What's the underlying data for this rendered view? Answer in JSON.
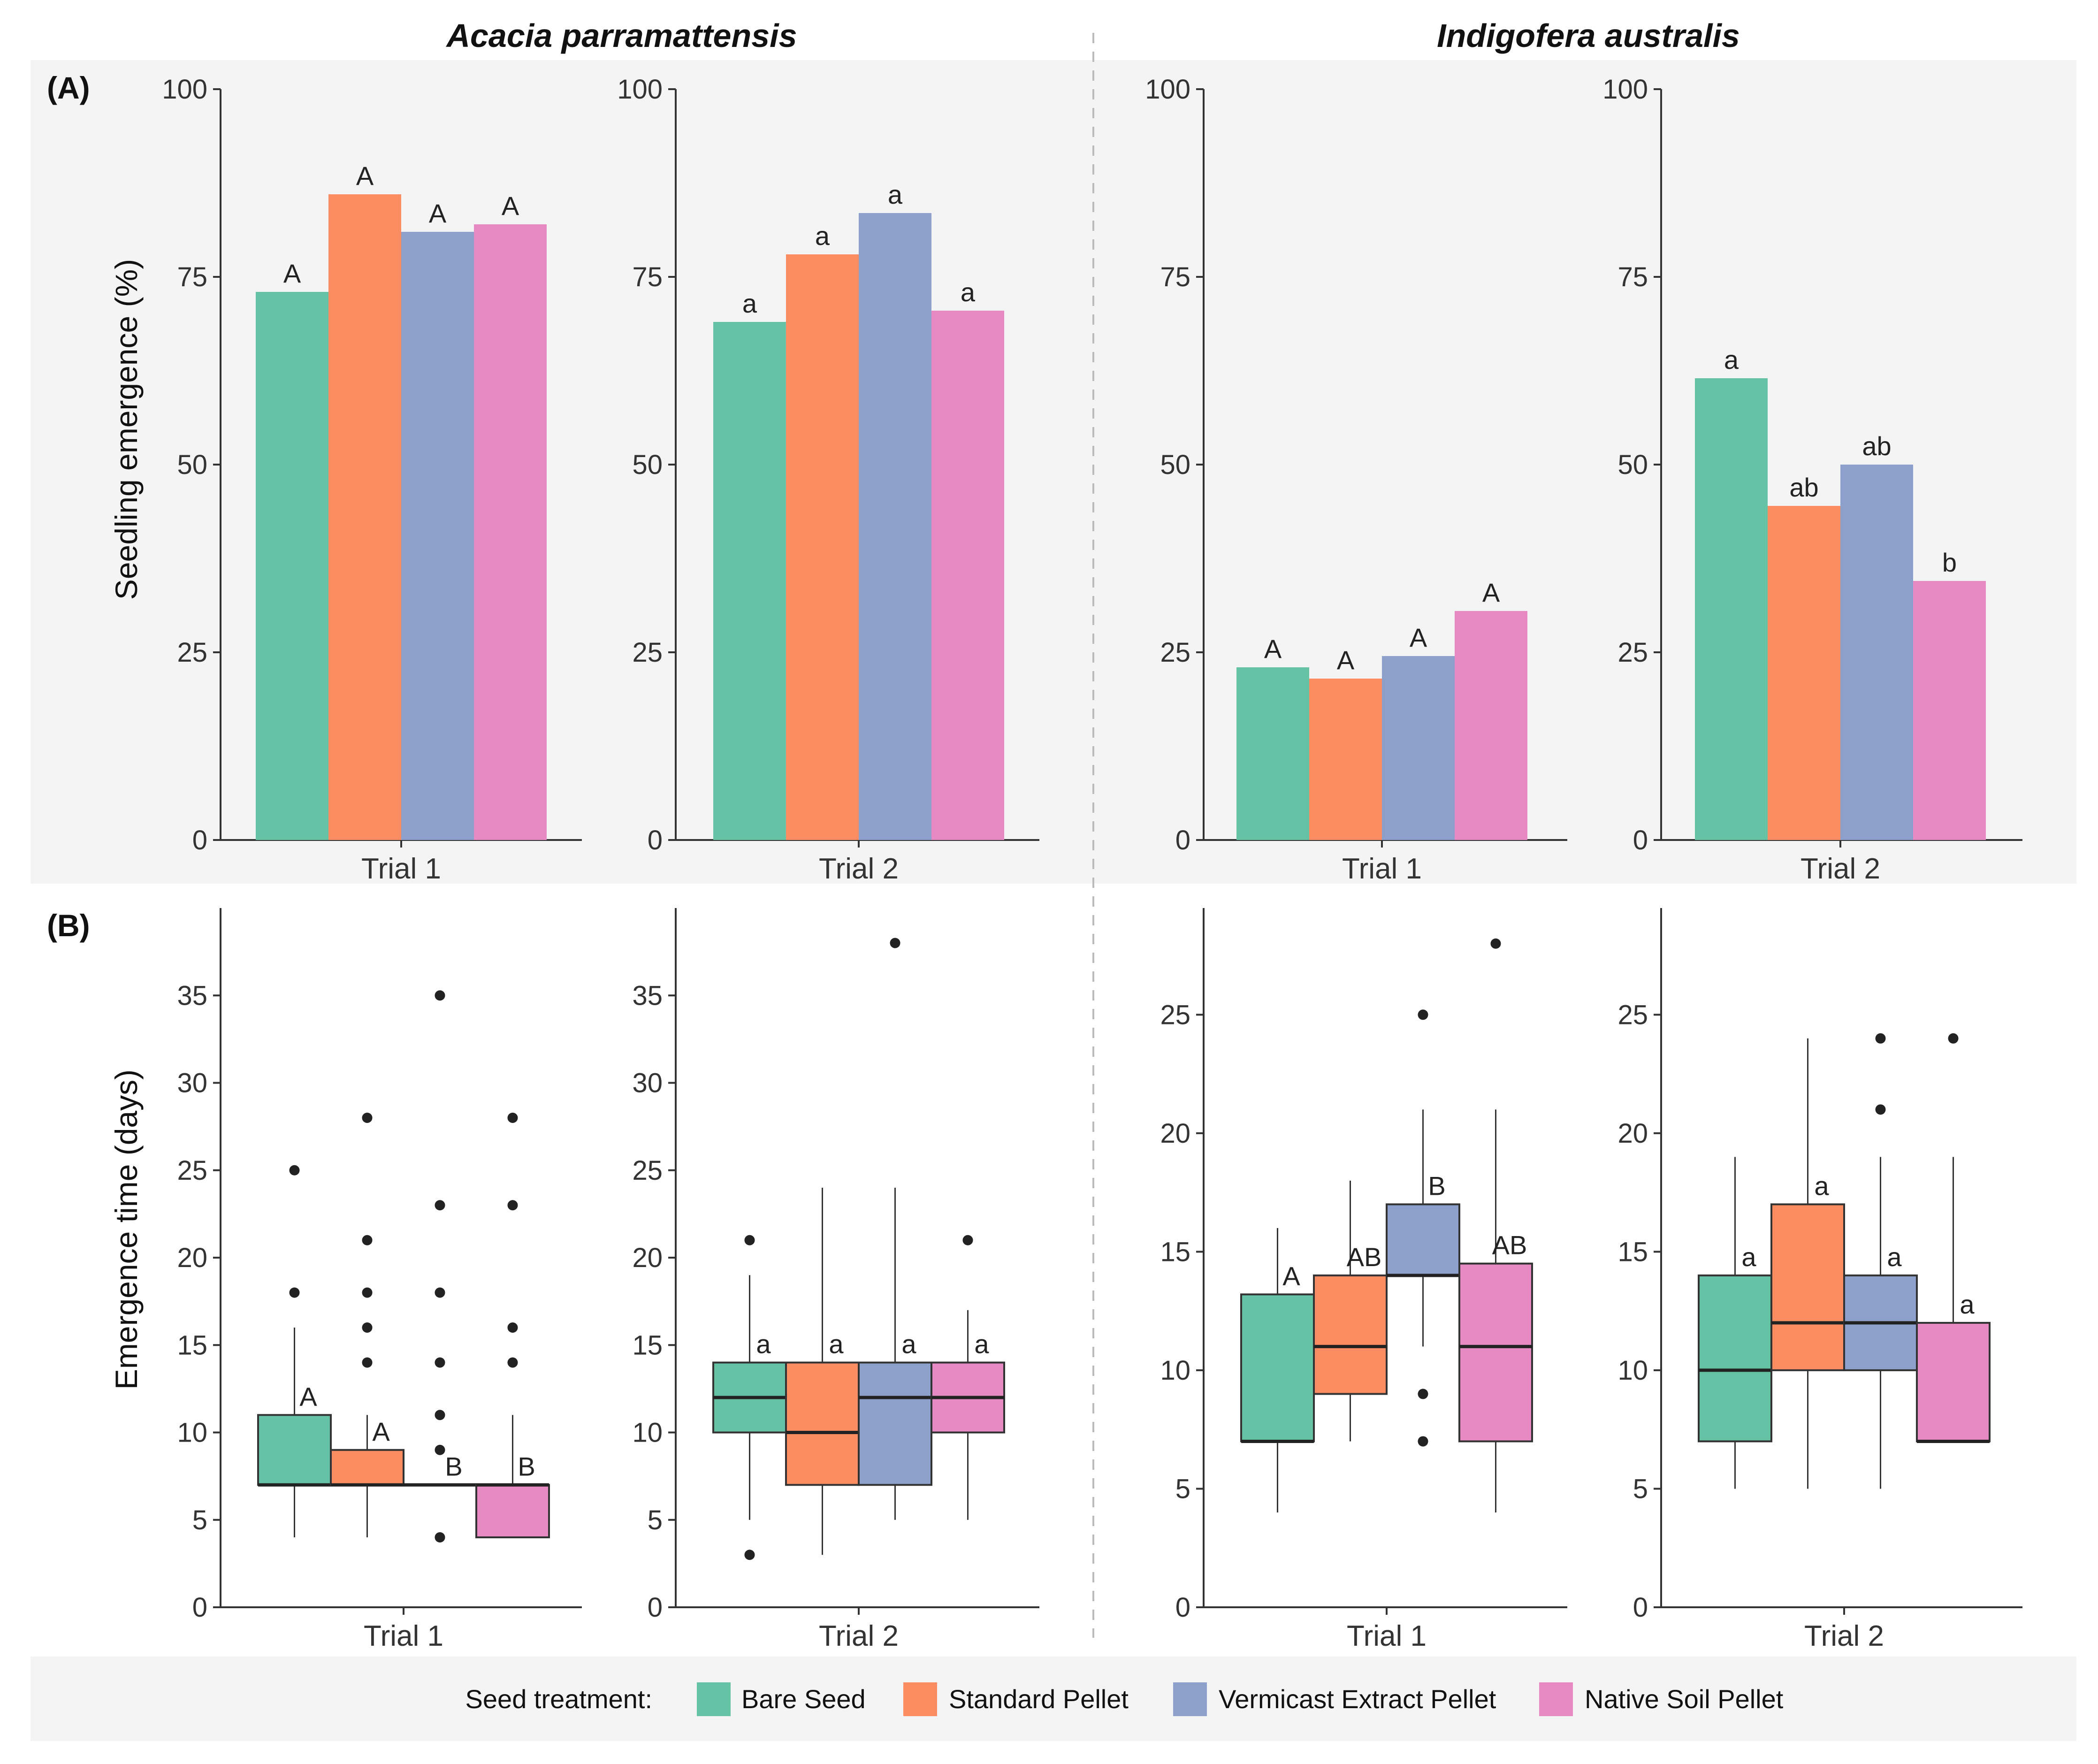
{
  "figure": {
    "species": [
      "Acacia parramattensis",
      "Indigofera australis"
    ],
    "panel_labels": [
      "(A)",
      "(B)"
    ],
    "legend": {
      "title": "Seed treatment:",
      "items": [
        {
          "label": "Bare Seed",
          "color": "#66c2a5"
        },
        {
          "label": "Standard Pellet",
          "color": "#fc8d62"
        },
        {
          "label": "Vermicast Extract Pellet",
          "color": "#8da0cb"
        },
        {
          "label": "Native Soil Pellet",
          "color": "#e78ac3"
        }
      ]
    }
  },
  "chart_data": [
    {
      "type": "bar",
      "row": "A",
      "species": "Acacia parramattensis",
      "trial": "Trial 1",
      "ylabel": "Seedling emergence (%)",
      "ylim": [
        0,
        100
      ],
      "yticks": [
        0,
        25,
        50,
        75,
        100
      ],
      "categories": [
        "Bare Seed",
        "Standard Pellet",
        "Vermicast Extract Pellet",
        "Native Soil Pellet"
      ],
      "values": [
        73,
        86,
        81,
        82
      ],
      "letters": [
        "A",
        "A",
        "A",
        "A"
      ]
    },
    {
      "type": "bar",
      "row": "A",
      "species": "Acacia parramattensis",
      "trial": "Trial 2",
      "ylabel": "",
      "ylim": [
        0,
        100
      ],
      "yticks": [
        0,
        25,
        50,
        75,
        100
      ],
      "categories": [
        "Bare Seed",
        "Standard Pellet",
        "Vermicast Extract Pellet",
        "Native Soil Pellet"
      ],
      "values": [
        69,
        78,
        83.5,
        70.5
      ],
      "letters": [
        "a",
        "a",
        "a",
        "a"
      ]
    },
    {
      "type": "bar",
      "row": "A",
      "species": "Indigofera australis",
      "trial": "Trial 1",
      "ylabel": "",
      "ylim": [
        0,
        100
      ],
      "yticks": [
        0,
        25,
        50,
        75,
        100
      ],
      "categories": [
        "Bare Seed",
        "Standard Pellet",
        "Vermicast Extract Pellet",
        "Native Soil Pellet"
      ],
      "values": [
        23,
        21.5,
        24.5,
        30.5
      ],
      "letters": [
        "A",
        "A",
        "A",
        "A"
      ]
    },
    {
      "type": "bar",
      "row": "A",
      "species": "Indigofera australis",
      "trial": "Trial 2",
      "ylabel": "",
      "ylim": [
        0,
        100
      ],
      "yticks": [
        0,
        25,
        50,
        75,
        100
      ],
      "categories": [
        "Bare Seed",
        "Standard Pellet",
        "Vermicast Extract Pellet",
        "Native Soil Pellet"
      ],
      "values": [
        61.5,
        44.5,
        50,
        34.5
      ],
      "letters": [
        "a",
        "ab",
        "ab",
        "b"
      ]
    },
    {
      "type": "box",
      "row": "B",
      "species": "Acacia parramattensis",
      "trial": "Trial 1",
      "ylabel": "Emergence time (days)",
      "ylim": [
        0,
        40
      ],
      "yticks": [
        0,
        5,
        10,
        15,
        20,
        25,
        30,
        35
      ],
      "boxes": [
        {
          "q1": 7,
          "median": 7,
          "q3": 11,
          "wlo": 4,
          "whi": 16,
          "outliers": [
            18,
            25
          ],
          "letter": "A"
        },
        {
          "q1": 7,
          "median": 7,
          "q3": 9,
          "wlo": 4,
          "whi": 11,
          "outliers": [
            14,
            16,
            18,
            21,
            28
          ],
          "letter": "A"
        },
        {
          "q1": 7,
          "median": 7,
          "q3": 7,
          "wlo": 7,
          "whi": 7,
          "outliers": [
            4,
            9,
            11,
            14,
            18,
            23,
            35
          ],
          "letter": "B"
        },
        {
          "q1": 4,
          "median": 7,
          "q3": 7,
          "wlo": 4,
          "whi": 11,
          "outliers": [
            14,
            16,
            23,
            28
          ],
          "letter": "B"
        }
      ]
    },
    {
      "type": "box",
      "row": "B",
      "species": "Acacia parramattensis",
      "trial": "Trial 2",
      "ylabel": "",
      "ylim": [
        0,
        40
      ],
      "yticks": [
        0,
        5,
        10,
        15,
        20,
        25,
        30,
        35
      ],
      "boxes": [
        {
          "q1": 10,
          "median": 12,
          "q3": 14,
          "wlo": 5,
          "whi": 19,
          "outliers": [
            3,
            21
          ],
          "letter": "a"
        },
        {
          "q1": 7,
          "median": 10,
          "q3": 14,
          "wlo": 3,
          "whi": 24,
          "outliers": [],
          "letter": "a"
        },
        {
          "q1": 7,
          "median": 12,
          "q3": 14,
          "wlo": 5,
          "whi": 24,
          "outliers": [
            38
          ],
          "letter": "a"
        },
        {
          "q1": 10,
          "median": 12,
          "q3": 14,
          "wlo": 5,
          "whi": 17,
          "outliers": [
            21
          ],
          "letter": "a"
        }
      ]
    },
    {
      "type": "box",
      "row": "B",
      "species": "Indigofera australis",
      "trial": "Trial 1",
      "ylabel": "",
      "ylim": [
        0,
        29.5
      ],
      "yticks": [
        0,
        5,
        10,
        15,
        20,
        25
      ],
      "boxes": [
        {
          "q1": 7,
          "median": 7,
          "q3": 13.2,
          "wlo": 4,
          "whi": 16,
          "outliers": [],
          "letter": "A"
        },
        {
          "q1": 9,
          "median": 11,
          "q3": 14,
          "wlo": 7,
          "whi": 18,
          "outliers": [],
          "letter": "AB"
        },
        {
          "q1": 14,
          "median": 14,
          "q3": 17,
          "wlo": 11,
          "whi": 21,
          "outliers": [
            7,
            9,
            25
          ],
          "letter": "B"
        },
        {
          "q1": 7,
          "median": 11,
          "q3": 14.5,
          "wlo": 4,
          "whi": 21,
          "outliers": [
            28
          ],
          "letter": "AB"
        }
      ]
    },
    {
      "type": "box",
      "row": "B",
      "species": "Indigofera australis",
      "trial": "Trial 2",
      "ylabel": "",
      "ylim": [
        0,
        29.5
      ],
      "yticks": [
        0,
        5,
        10,
        15,
        20,
        25
      ],
      "boxes": [
        {
          "q1": 7,
          "median": 10,
          "q3": 14,
          "wlo": 5,
          "whi": 19,
          "outliers": [],
          "letter": "a"
        },
        {
          "q1": 10,
          "median": 12,
          "q3": 17,
          "wlo": 5,
          "whi": 24,
          "outliers": [],
          "letter": "a"
        },
        {
          "q1": 10,
          "median": 12,
          "q3": 14,
          "wlo": 5,
          "whi": 19,
          "outliers": [
            21,
            24
          ],
          "letter": "a"
        },
        {
          "q1": 7,
          "median": 7,
          "q3": 12,
          "wlo": 7,
          "whi": 19,
          "outliers": [
            24
          ],
          "letter": "a"
        }
      ]
    }
  ]
}
